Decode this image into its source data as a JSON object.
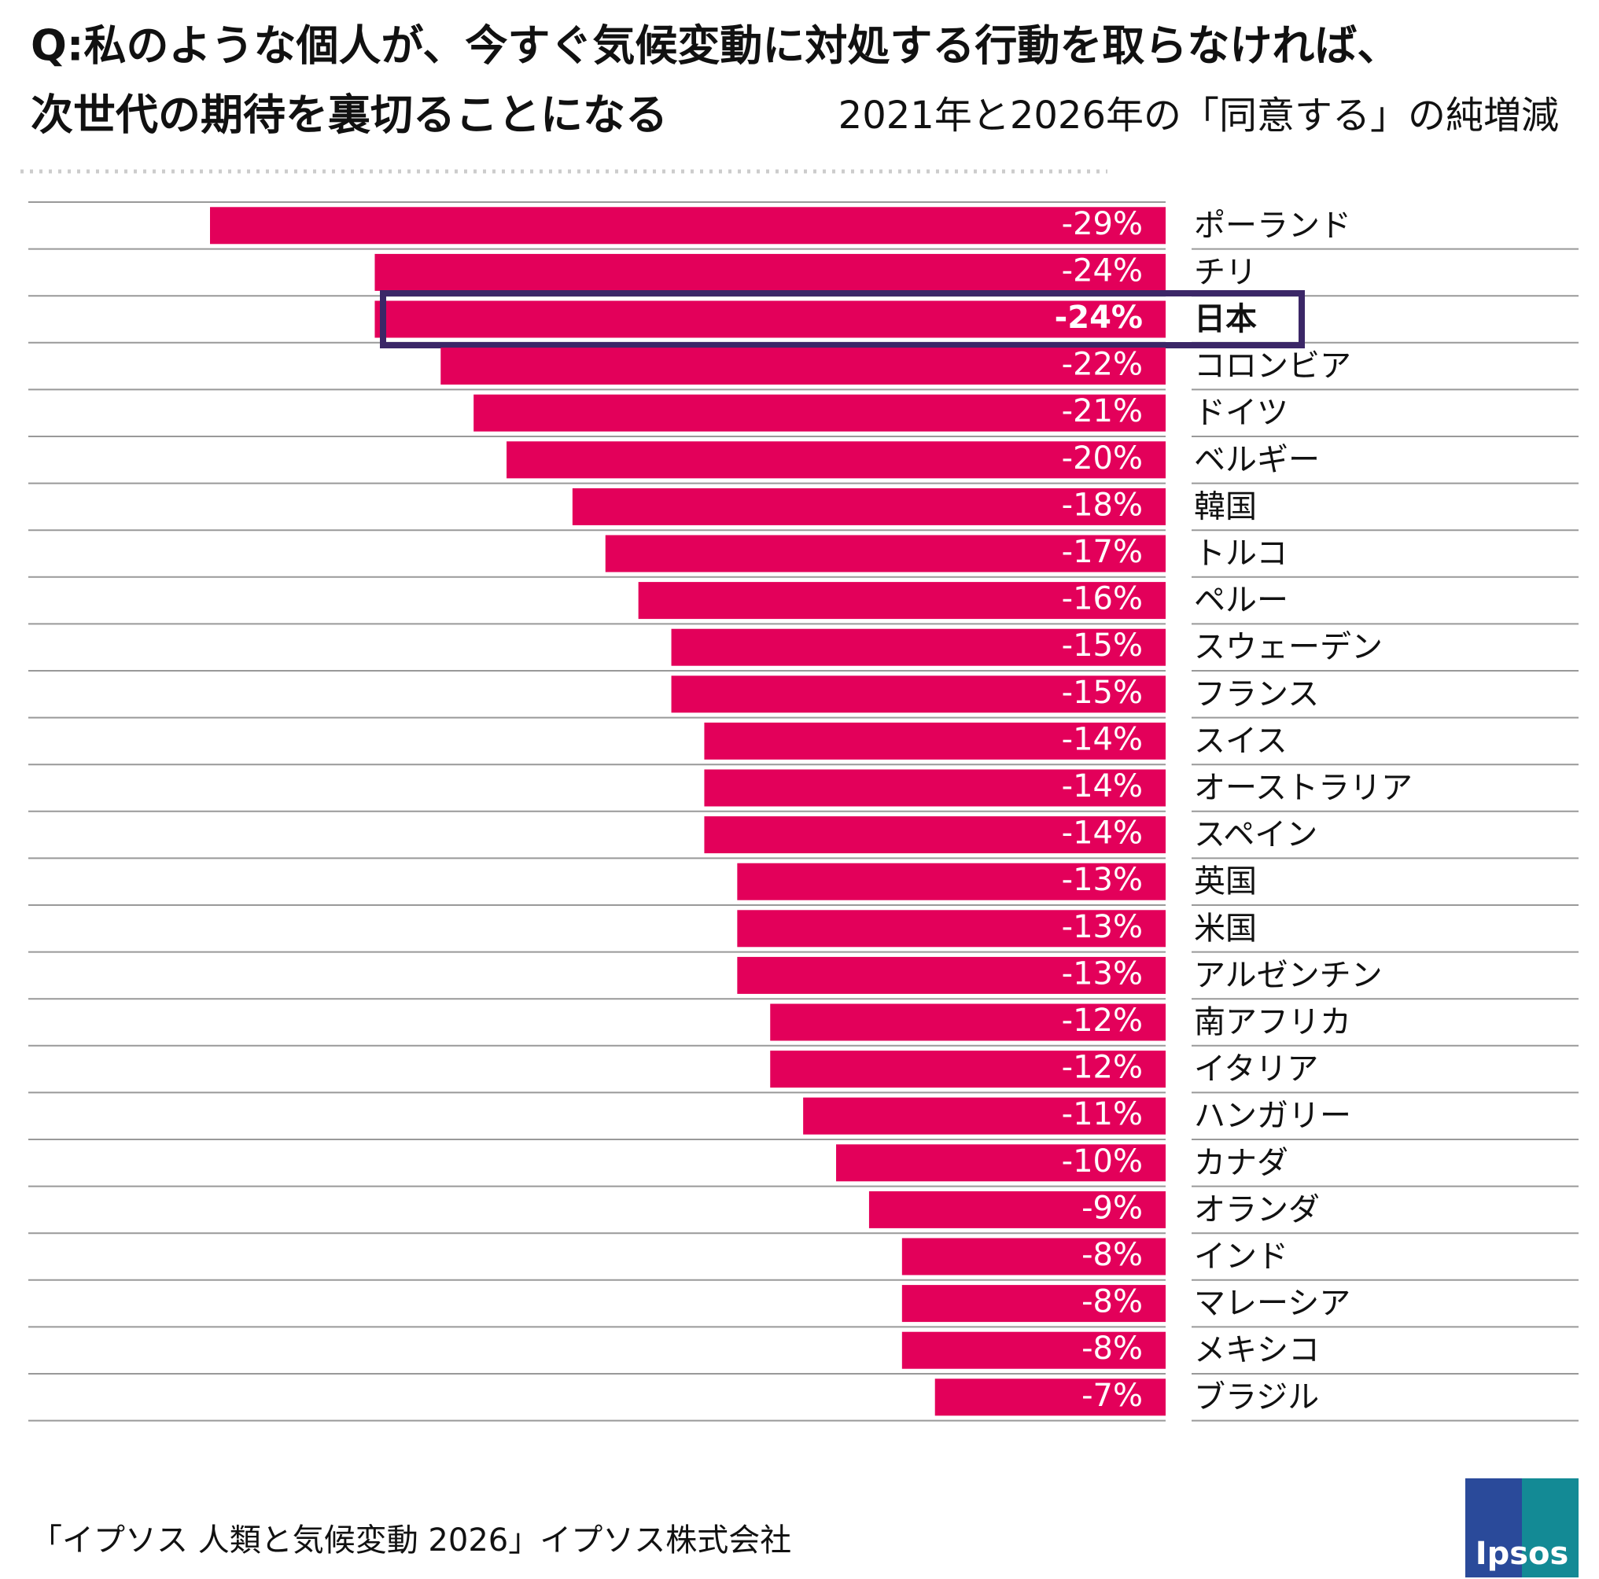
{
  "chart_data": {
    "type": "bar",
    "orientation": "horizontal",
    "title": [
      "Q:私のような個人が、今すぐ気候変動に対処する行動を取らなければ、",
      "次世代の期待を裏切ることになる"
    ],
    "subtitle": "2021年と2026年の「同意する」の純増減",
    "categories": [
      "ポーランド",
      "チリ",
      "日本",
      "コロンビア",
      "ドイツ",
      "ベルギー",
      "韓国",
      "トルコ",
      "ペルー",
      "スウェーデン",
      "フランス",
      "スイス",
      "オーストラリア",
      "スペイン",
      "英国",
      "米国",
      "アルゼンチン",
      "南アフリカ",
      "イタリア",
      "ハンガリー",
      "カナダ",
      "オランダ",
      "インド",
      "マレーシア",
      "メキシコ",
      "ブラジル"
    ],
    "values": [
      -29,
      -24,
      -24,
      -22,
      -21,
      -20,
      -18,
      -17,
      -16,
      -15,
      -15,
      -14,
      -14,
      -14,
      -13,
      -13,
      -13,
      -12,
      -12,
      -11,
      -10,
      -9,
      -8,
      -8,
      -8,
      -7
    ],
    "value_labels": [
      "-29%",
      "-24%",
      "-24%",
      "-22%",
      "-21%",
      "-20%",
      "-18%",
      "-17%",
      "-16%",
      "-15%",
      "-15%",
      "-14%",
      "-14%",
      "-14%",
      "-13%",
      "-13%",
      "-13%",
      "-12%",
      "-12%",
      "-11%",
      "-10%",
      "-9%",
      "-8%",
      "-8%",
      "-8%",
      "-7%"
    ],
    "color": "#e3005a",
    "highlight_index": 2,
    "highlight_color": "#3b2767",
    "source": "「イプソス 人類と気候変動 2026」イプソス株式会社",
    "logo": "Ipsos"
  }
}
